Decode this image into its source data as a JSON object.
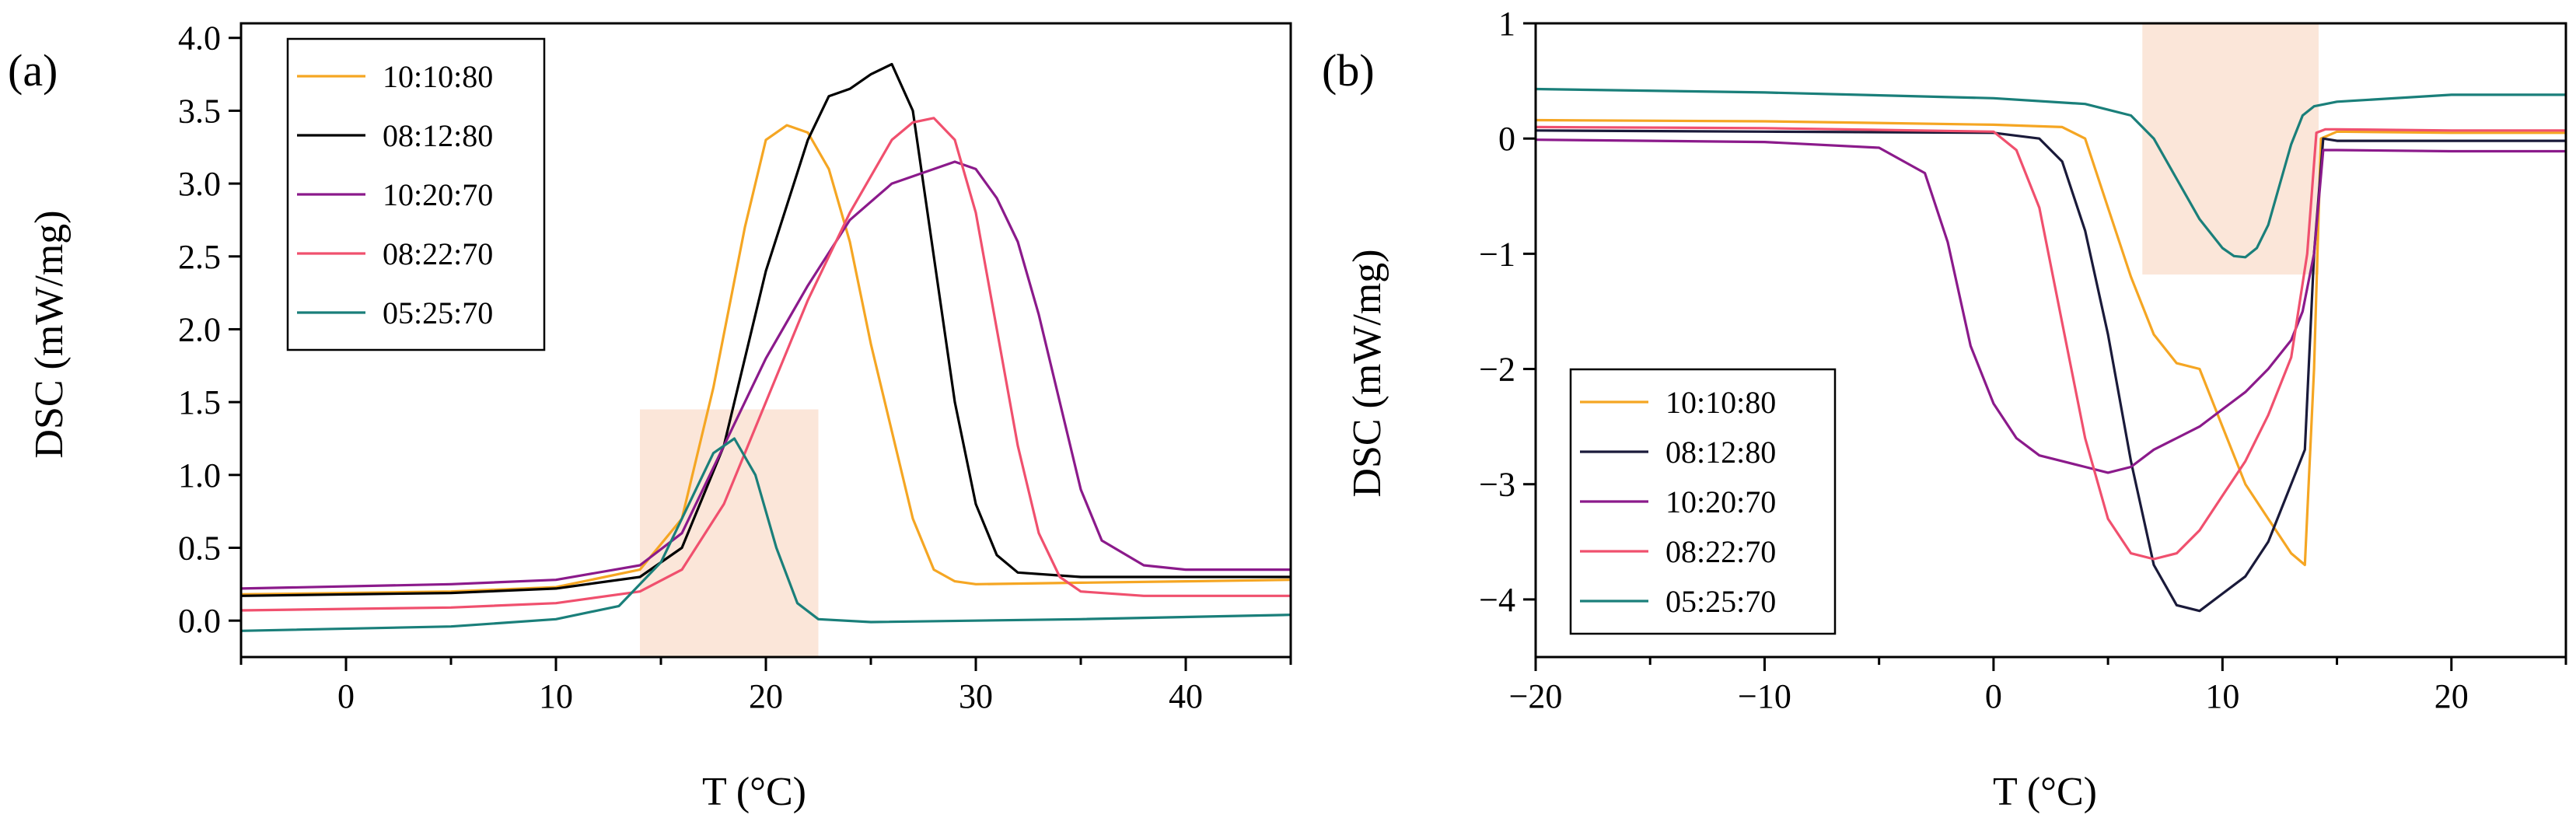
{
  "chart_data": [
    {
      "type": "line",
      "panel_label": "(a)",
      "xlabel": "T (°C)",
      "ylabel": "DSC (mW/mg)",
      "xlim": [
        -5,
        45
      ],
      "ylim": [
        -0.25,
        4.1
      ],
      "xticks": [
        0,
        10,
        20,
        30,
        40
      ],
      "yticks": [
        0.0,
        0.5,
        1.0,
        1.5,
        2.0,
        2.5,
        3.0,
        3.5,
        4.0
      ],
      "ytick_labels": [
        "0.0",
        "0.5",
        "1.0",
        "1.5",
        "2.0",
        "2.5",
        "3.0",
        "3.5",
        "4.0"
      ],
      "xtick_labels": [
        "0",
        "10",
        "20",
        "30",
        "40"
      ],
      "grid": false,
      "legend_position": "top-left",
      "highlight_region": {
        "x": [
          14,
          22.5
        ],
        "y": [
          -0.25,
          1.45
        ],
        "color": "#fbe6d9"
      },
      "series": [
        {
          "name": "10:10:80",
          "color": "#f5a623",
          "x": [
            -5,
            5,
            10,
            14,
            16,
            17.5,
            19,
            20,
            21,
            22,
            23,
            24,
            25,
            26,
            27,
            28,
            29,
            30,
            35,
            40,
            45
          ],
          "y": [
            0.18,
            0.2,
            0.23,
            0.35,
            0.7,
            1.6,
            2.7,
            3.3,
            3.4,
            3.35,
            3.1,
            2.6,
            1.9,
            1.3,
            0.7,
            0.35,
            0.27,
            0.25,
            0.26,
            0.27,
            0.28
          ]
        },
        {
          "name": "08:12:80",
          "color": "#000000",
          "x": [
            -5,
            5,
            10,
            14,
            16,
            18,
            20,
            22,
            23,
            24,
            25,
            26,
            27,
            28,
            29,
            30,
            31,
            32,
            35,
            40,
            45
          ],
          "y": [
            0.17,
            0.19,
            0.22,
            0.3,
            0.5,
            1.2,
            2.4,
            3.3,
            3.6,
            3.65,
            3.75,
            3.82,
            3.5,
            2.5,
            1.5,
            0.8,
            0.45,
            0.33,
            0.3,
            0.3,
            0.3
          ]
        },
        {
          "name": "10:20:70",
          "color": "#8b1a8b",
          "x": [
            -5,
            5,
            10,
            14,
            16,
            18,
            20,
            22,
            24,
            26,
            28,
            29,
            30,
            31,
            32,
            33,
            34,
            35,
            36,
            38,
            40,
            45
          ],
          "y": [
            0.22,
            0.25,
            0.28,
            0.38,
            0.6,
            1.2,
            1.8,
            2.3,
            2.75,
            3.0,
            3.1,
            3.15,
            3.1,
            2.9,
            2.6,
            2.1,
            1.5,
            0.9,
            0.55,
            0.38,
            0.35,
            0.35
          ]
        },
        {
          "name": "08:22:70",
          "color": "#f0506e",
          "x": [
            -5,
            5,
            10,
            14,
            16,
            18,
            20,
            22,
            24,
            26,
            27,
            28,
            29,
            30,
            31,
            32,
            33,
            34,
            35,
            38,
            45
          ],
          "y": [
            0.07,
            0.09,
            0.12,
            0.2,
            0.35,
            0.8,
            1.5,
            2.2,
            2.8,
            3.3,
            3.42,
            3.45,
            3.3,
            2.8,
            2.0,
            1.2,
            0.6,
            0.3,
            0.2,
            0.17,
            0.17
          ]
        },
        {
          "name": "05:25:70",
          "color": "#1a7f7a",
          "x": [
            -5,
            5,
            10,
            13,
            15,
            16.5,
            17.5,
            18.5,
            19.5,
            20.5,
            21.5,
            22.5,
            25,
            35,
            45
          ],
          "y": [
            -0.07,
            -0.04,
            0.01,
            0.1,
            0.4,
            0.85,
            1.15,
            1.25,
            1.0,
            0.5,
            0.12,
            0.01,
            -0.01,
            0.01,
            0.04
          ]
        }
      ]
    },
    {
      "type": "line",
      "panel_label": "(b)",
      "xlabel": "T (°C)",
      "ylabel": "DSC (mW/mg)",
      "xlim": [
        -20,
        25
      ],
      "ylim": [
        -4.5,
        1.0
      ],
      "xticks": [
        -20,
        -10,
        0,
        10,
        20
      ],
      "yticks": [
        -4,
        -3,
        -2,
        -1,
        0,
        1
      ],
      "xtick_labels": [
        "−20",
        "−10",
        "0",
        "10",
        "20"
      ],
      "ytick_labels": [
        "−4",
        "−3",
        "−2",
        "−1",
        "0",
        "1"
      ],
      "grid": false,
      "legend_position": "bottom-left",
      "highlight_region": {
        "x": [
          6.5,
          14.2
        ],
        "y": [
          -1.18,
          1.0
        ],
        "color": "#fbe6d9"
      },
      "series": [
        {
          "name": "10:10:80",
          "color": "#f5a623",
          "x": [
            -20,
            -10,
            0,
            3,
            4,
            4.5,
            5,
            6,
            7,
            8,
            9,
            10,
            11,
            12,
            13,
            13.6,
            14,
            14.3,
            15,
            20,
            25
          ],
          "y": [
            0.16,
            0.15,
            0.12,
            0.1,
            0.0,
            -0.3,
            -0.6,
            -1.2,
            -1.7,
            -1.95,
            -2.0,
            -2.5,
            -3.0,
            -3.3,
            -3.6,
            -3.7,
            -2.0,
            0.0,
            0.06,
            0.05,
            0.05
          ]
        },
        {
          "name": "08:12:80",
          "color": "#1a1a3a",
          "x": [
            -20,
            -10,
            0,
            2,
            3,
            4,
            5,
            6,
            7,
            8,
            9,
            10,
            11,
            12,
            13,
            13.6,
            14,
            14.4,
            15,
            20,
            25
          ],
          "y": [
            0.07,
            0.06,
            0.05,
            0.0,
            -0.2,
            -0.8,
            -1.7,
            -2.8,
            -3.7,
            -4.05,
            -4.1,
            -3.95,
            -3.8,
            -3.5,
            -3.0,
            -2.7,
            -1.0,
            0.0,
            -0.02,
            -0.02,
            -0.02
          ]
        },
        {
          "name": "10:20:70",
          "color": "#8b1a8b",
          "x": [
            -20,
            -10,
            -5,
            -3,
            -2,
            -1,
            0,
            1,
            2,
            3,
            4,
            5,
            6,
            7,
            8,
            9,
            10,
            11,
            12,
            13,
            13.5,
            14,
            14.4,
            15,
            20,
            25
          ],
          "y": [
            -0.01,
            -0.03,
            -0.08,
            -0.3,
            -0.9,
            -1.8,
            -2.3,
            -2.6,
            -2.75,
            -2.8,
            -2.85,
            -2.9,
            -2.85,
            -2.7,
            -2.6,
            -2.5,
            -2.35,
            -2.2,
            -2.0,
            -1.75,
            -1.5,
            -1.0,
            -0.1,
            -0.1,
            -0.11,
            -0.11
          ]
        },
        {
          "name": "08:22:70",
          "color": "#f0506e",
          "x": [
            -20,
            -10,
            0,
            1,
            2,
            3,
            4,
            5,
            6,
            7,
            8,
            9,
            10,
            11,
            12,
            13,
            13.7,
            14.1,
            14.5,
            15,
            20,
            25
          ],
          "y": [
            0.1,
            0.09,
            0.06,
            -0.1,
            -0.6,
            -1.6,
            -2.6,
            -3.3,
            -3.6,
            -3.65,
            -3.6,
            -3.4,
            -3.1,
            -2.8,
            -2.4,
            -1.9,
            -1.0,
            0.05,
            0.08,
            0.08,
            0.07,
            0.07
          ]
        },
        {
          "name": "05:25:70",
          "color": "#1a7f7a",
          "x": [
            -20,
            -10,
            0,
            4,
            5,
            6,
            7,
            8,
            9,
            10,
            10.5,
            11,
            11.5,
            12,
            12.5,
            13,
            13.5,
            14,
            15,
            20,
            25
          ],
          "y": [
            0.43,
            0.4,
            0.35,
            0.3,
            0.25,
            0.2,
            0.0,
            -0.35,
            -0.7,
            -0.95,
            -1.02,
            -1.03,
            -0.95,
            -0.75,
            -0.4,
            -0.05,
            0.2,
            0.28,
            0.32,
            0.38,
            0.38
          ]
        }
      ]
    }
  ]
}
